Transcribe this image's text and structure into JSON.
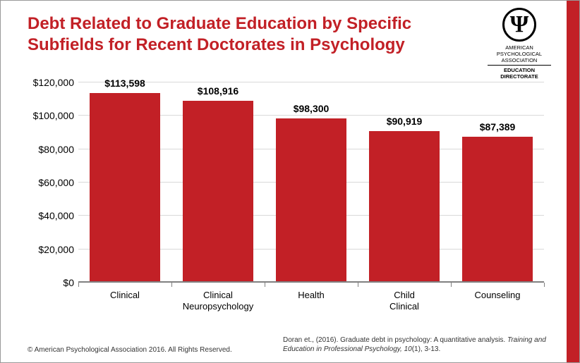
{
  "title": "Debt Related to Graduate Education by Specific Subfields for Recent Doctorates in Psychology",
  "title_color": "#c22026",
  "title_fontsize": 24,
  "logo": {
    "org1": "AMERICAN",
    "org2": "PSYCHOLOGICAL",
    "org3": "ASSOCIATION",
    "edu1": "EDUCATION",
    "edu2": "DIRECTORATE"
  },
  "side_bar_color": "#c22026",
  "chart": {
    "type": "bar",
    "categories": [
      "Clinical",
      "Clinical Neuropsychology",
      "Health",
      "Child Clinical",
      "Counseling"
    ],
    "values": [
      113598,
      108916,
      98300,
      90919,
      87389
    ],
    "value_labels": [
      "$113,598",
      "$108,916",
      "$98,300",
      "$90,919",
      "$87,389"
    ],
    "bar_color": "#c22026",
    "ylim": [
      0,
      120000
    ],
    "ytick_step": 20000,
    "ytick_labels": [
      "$0",
      "$20,000",
      "$40,000",
      "$60,000",
      "$80,000",
      "$100,000",
      "$120,000"
    ],
    "grid_color": "#d9d9d9",
    "axis_color": "#808080",
    "background_color": "#ffffff",
    "label_fontsize": 13,
    "value_label_fontsize": 14,
    "bar_width": 0.76
  },
  "footer": {
    "copyright": "© American Psychological Association 2016. All Rights Reserved.",
    "citation_pre": "Doran et., (2016). Graduate debt in psychology: A quantitative analysis.",
    "citation_ital": "Training and Education in Professional Psychology, 10",
    "citation_post": "(1), 3-13."
  }
}
